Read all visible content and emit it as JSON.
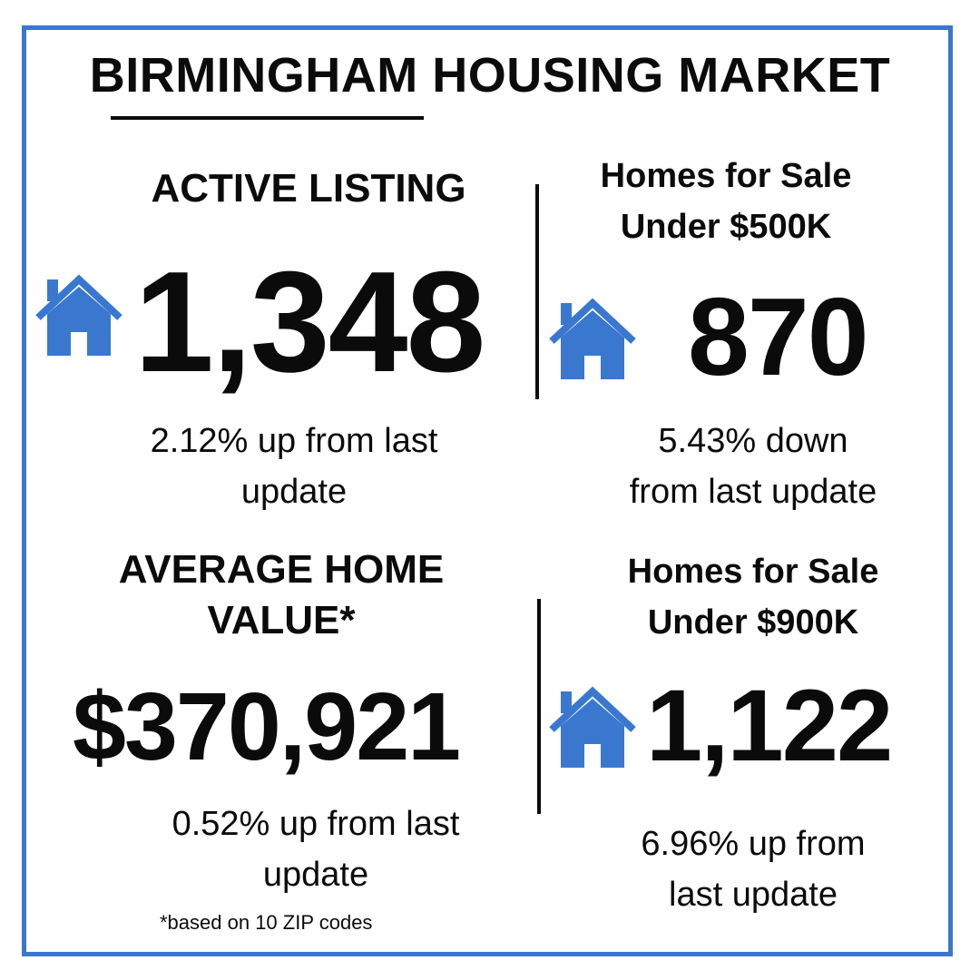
{
  "title": "BIRMINGHAM HOUSING MARKET",
  "icon_color": "#3a78cf",
  "border_color": "#3a78cf",
  "stats": [
    {
      "heading_lines": [
        "ACTIVE LISTING"
      ],
      "value": "1,348",
      "change_lines": [
        "2.12% up from last",
        "update"
      ],
      "icon": "house-icon"
    },
    {
      "heading_lines": [
        "Homes for Sale",
        "Under $500K"
      ],
      "value": "870",
      "change_lines": [
        "5.43% down",
        "from last update"
      ],
      "icon": "house-icon"
    },
    {
      "heading_lines": [
        "AVERAGE HOME",
        "VALUE*"
      ],
      "value": "$370,921",
      "change_lines": [
        "0.52% up from last",
        "update"
      ]
    },
    {
      "heading_lines": [
        "Homes for Sale",
        "Under $900K"
      ],
      "value": "1,122",
      "change_lines": [
        "6.96% up from",
        "last update"
      ],
      "icon": "house-icon"
    }
  ],
  "footnote": "*based on 10 ZIP codes"
}
